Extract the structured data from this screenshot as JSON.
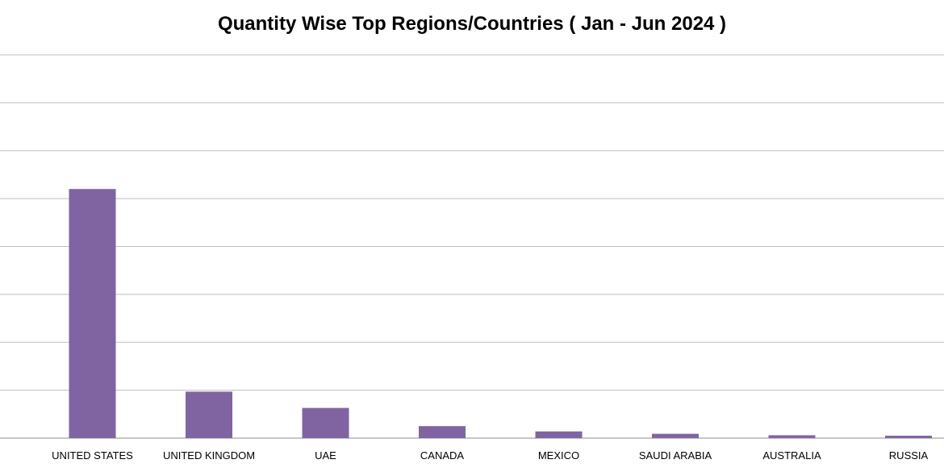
{
  "chart_data": {
    "type": "bar",
    "title": "Quantity Wise Top Regions/Countries ( Jan - Jun 2024 )",
    "categories": [
      "UNITED STATES",
      "UNITED KINGDOM",
      "UAE",
      "CANADA",
      "MEXICO",
      "SAUDI ARABIA",
      "AUSTRALIA",
      "RUSSIA"
    ],
    "series": [
      {
        "values": [
          5.2,
          0.97,
          0.63,
          0.25,
          0.14,
          0.09,
          0.06,
          0.05
        ]
      }
    ],
    "ylim": [
      0,
      8
    ],
    "grid": true,
    "colors": {
      "bar": "#8064A2",
      "grid": "#BFBFBF",
      "axis": "#8C8C8C"
    }
  }
}
